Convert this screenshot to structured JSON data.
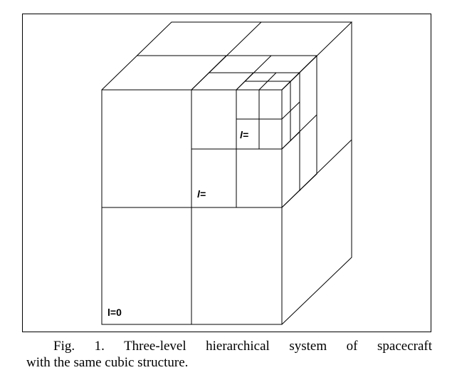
{
  "figure": {
    "labels": {
      "level_0": "l=0",
      "level_1": "l=",
      "level_2": "l="
    },
    "caption": {
      "line1": "Fig. 1. Three-level hierarchical system of spacecraft",
      "line2": "with the same cubic structure."
    },
    "line_color": "#000000",
    "background": "#ffffff"
  }
}
